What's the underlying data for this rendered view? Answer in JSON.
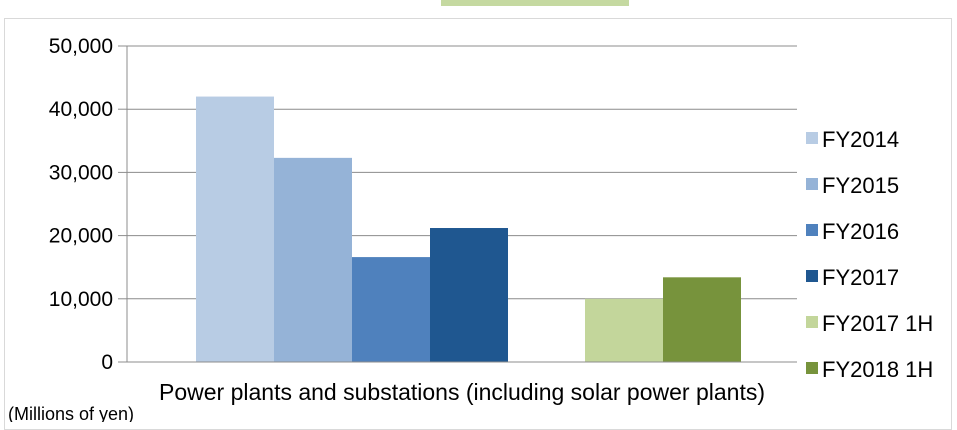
{
  "chart_data": {
    "type": "bar",
    "categories": [
      "Power plants and substations (including solar power plants)"
    ],
    "series": [
      {
        "name": "FY2014",
        "color": "#b8cce4",
        "values": [
          42000
        ]
      },
      {
        "name": "FY2015",
        "color": "#95b3d7",
        "values": [
          32300
        ]
      },
      {
        "name": "FY2016",
        "color": "#4f81bd",
        "values": [
          16600
        ]
      },
      {
        "name": "FY2017",
        "color": "#1f5790",
        "values": [
          21200
        ]
      },
      {
        "name": "FY2017 1H",
        "color": "#c3d69b",
        "values": [
          10000
        ]
      },
      {
        "name": "FY2018 1H",
        "color": "#77933c",
        "values": [
          13400
        ]
      }
    ],
    "ylim": [
      0,
      50000
    ],
    "yticks": [
      "0",
      "10,000",
      "20,000",
      "30,000",
      "40,000",
      "50,000"
    ],
    "unit_label": "(Millions of yen)",
    "legend_position": "right",
    "grid": true
  }
}
